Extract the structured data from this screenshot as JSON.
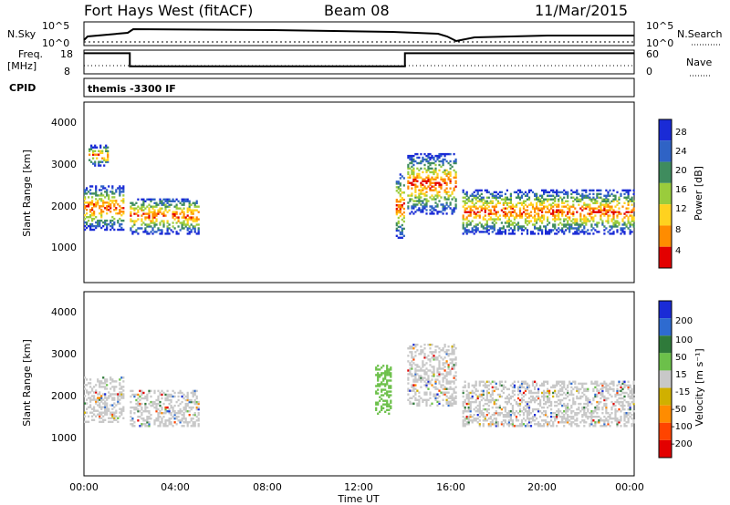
{
  "header": {
    "station": "Fort Hays West (fitACF)",
    "beam": "Beam 08",
    "date": "11/Mar/2015"
  },
  "panels": {
    "nsky_label": "N.Sky",
    "nsky_ticks": [
      "10^5",
      "10^0"
    ],
    "nsearch_label": "N.Search",
    "nsearch_ticks": [
      "10^5",
      "10^0"
    ],
    "freq_label": "Freq.",
    "freq_unit": "[MHz]",
    "freq_ticks": [
      "18",
      "8"
    ],
    "nave_label": "Nave",
    "nave_ticks": [
      "60",
      "0"
    ],
    "cpid_label": "CPID",
    "cpid_text": "themis -3300 IF"
  },
  "axes": {
    "ylabel": "Slant Range [km]",
    "xlabel": "Time UT",
    "yticks": [
      "4000",
      "3000",
      "2000",
      "1000"
    ],
    "xticks": [
      "00:00",
      "04:00",
      "08:00",
      "12:00",
      "16:00",
      "20:00",
      "00:00"
    ]
  },
  "colorbars": {
    "power_label": "Power [dB]",
    "power_ticks": [
      "28",
      "24",
      "20",
      "16",
      "12",
      "8",
      "4"
    ],
    "velocity_label": "Velocity [m s⁻¹]",
    "velocity_ticks": [
      "200",
      "100",
      "50",
      "15",
      "-15",
      "-50",
      "-100",
      "-200"
    ]
  },
  "chart_data": {
    "type": "heatmap",
    "title": "Fort Hays West (fitACF)",
    "x_range_hours": [
      0,
      24
    ],
    "y_range_km": [
      0,
      4500
    ],
    "freq_mhz_range": [
      8,
      18
    ],
    "freq_profile_mhz": [
      [
        0,
        17
      ],
      [
        2,
        11
      ],
      [
        14,
        17
      ],
      [
        24,
        17
      ]
    ],
    "power_colors": [
      "#1a2bd6",
      "#2f63c5",
      "#3f8c5e",
      "#9acc3c",
      "#ffd21f",
      "#ff8c00",
      "#e30000"
    ],
    "velocity_colors": [
      "#1a2bd6",
      "#2e6bd0",
      "#2f7a3a",
      "#6cc04a",
      "#c8c8c8",
      "#d0b000",
      "#ff8c00",
      "#ff4400",
      "#e30000"
    ],
    "power_bands": [
      {
        "t0": 0.0,
        "t1": 1.7,
        "r0": 1300,
        "r1": 2400
      },
      {
        "t0": 0.2,
        "t1": 1.0,
        "r0": 2900,
        "r1": 3400
      },
      {
        "t0": 2.0,
        "t1": 5.0,
        "r0": 1200,
        "r1": 2100
      },
      {
        "t0": 13.6,
        "t1": 14.0,
        "r0": 1100,
        "r1": 2700
      },
      {
        "t0": 14.1,
        "t1": 16.2,
        "r0": 1700,
        "r1": 3200
      },
      {
        "t0": 16.5,
        "t1": 24.0,
        "r0": 1200,
        "r1": 2300
      }
    ],
    "velocity_bands": [
      {
        "t0": 0.0,
        "t1": 1.7,
        "r0": 1300,
        "r1": 2400
      },
      {
        "t0": 2.0,
        "t1": 5.0,
        "r0": 1200,
        "r1": 2100
      },
      {
        "t0": 12.7,
        "t1": 13.4,
        "r0": 1500,
        "r1": 2700
      },
      {
        "t0": 14.1,
        "t1": 16.2,
        "r0": 1700,
        "r1": 3200
      },
      {
        "t0": 16.5,
        "t1": 24.0,
        "r0": 1200,
        "r1": 2300
      }
    ]
  }
}
